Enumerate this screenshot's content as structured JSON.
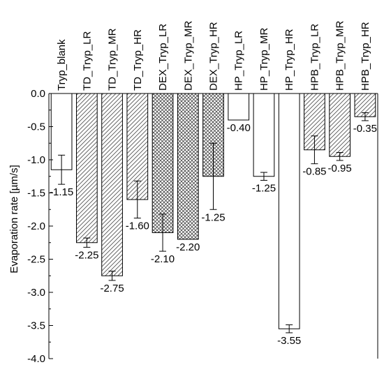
{
  "chart_data": {
    "type": "bar",
    "ylabel": "Evaporation rate [µm/s]",
    "xlabel": "",
    "ylim": [
      -4.0,
      0.0
    ],
    "yticks": [
      "0.0",
      "-0.5",
      "-1.0",
      "-1.5",
      "-2.0",
      "-2.5",
      "-3.0",
      "-3.5",
      "-4.0"
    ],
    "grid": false,
    "categories": [
      "Tryp_blank",
      "TD_Tryp_LR",
      "TD_Tryp_MR",
      "TD_Tryp_HR",
      "DEX_Tryp_LR",
      "DEX_Tryp_MR",
      "DEX_Tryp_HR",
      "HP_Tryp_LR",
      "HP_Tryp_MR",
      "HP_Tryp_HR",
      "HPB_Tryp_LR",
      "HPB_Tryp_MR",
      "HPB_Tryp_HR"
    ],
    "values": [
      -1.15,
      -2.25,
      -2.75,
      -1.6,
      -2.1,
      -2.2,
      -1.25,
      -0.4,
      -1.25,
      -3.55,
      -0.85,
      -0.95,
      -0.35
    ],
    "value_labels": [
      "-1.15",
      "-2.25",
      "-2.75",
      "-1.60",
      "-2.10",
      "-2.20",
      "-1.25",
      "-0.40",
      "-1.25",
      "-3.55",
      "-0.85",
      "-0.95",
      "-0.35"
    ],
    "errors": [
      0.22,
      0.07,
      0.07,
      0.28,
      0.28,
      0.0,
      0.5,
      0.0,
      0.06,
      0.06,
      0.21,
      0.06,
      0.06
    ],
    "patterns": [
      "none",
      "diag",
      "diag",
      "diag",
      "cross",
      "cross",
      "cross",
      "none",
      "none",
      "none",
      "diag",
      "diag",
      "diag"
    ],
    "colors": {
      "bar_fill": "#ffffff",
      "bar_stroke": "#000000",
      "hatch": "#555555"
    }
  }
}
